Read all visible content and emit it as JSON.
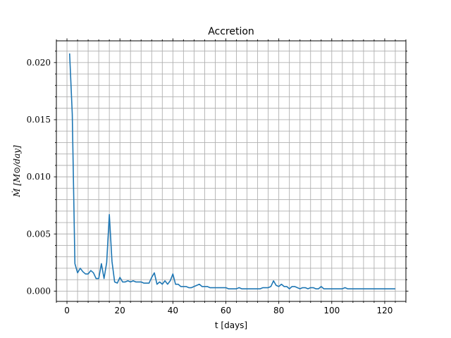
{
  "chart_data": {
    "type": "line",
    "title": "Accretion",
    "xlabel": "t [days]",
    "ylabel": "Ṁ    [M⊙/day]",
    "xlim": [
      -4,
      128
    ],
    "ylim": [
      -0.0009,
      0.0219
    ],
    "xticks": [
      0,
      20,
      40,
      60,
      80,
      100,
      120
    ],
    "xtick_labels": [
      "0",
      "20",
      "40",
      "60",
      "80",
      "100",
      "120"
    ],
    "x_minor_step": 4,
    "yticks": [
      0.0,
      0.005,
      0.01,
      0.015,
      0.02
    ],
    "ytick_labels": [
      "0.000",
      "0.005",
      "0.010",
      "0.015",
      "0.020"
    ],
    "y_minor_step": 0.001,
    "grid": true,
    "series": [
      {
        "color": "#1f77b4",
        "x": [
          1,
          2,
          3,
          4,
          5,
          6,
          7,
          8,
          9,
          10,
          11,
          12,
          13,
          14,
          15,
          16,
          17,
          18,
          19,
          20,
          21,
          22,
          23,
          24,
          25,
          26,
          27,
          28,
          29,
          30,
          31,
          32,
          33,
          34,
          35,
          36,
          37,
          38,
          39,
          40,
          41,
          42,
          43,
          44,
          45,
          46,
          47,
          48,
          49,
          50,
          51,
          52,
          53,
          54,
          55,
          56,
          57,
          58,
          59,
          60,
          61,
          62,
          63,
          64,
          65,
          66,
          67,
          68,
          69,
          70,
          71,
          72,
          73,
          74,
          75,
          76,
          77,
          78,
          79,
          80,
          81,
          82,
          83,
          84,
          85,
          86,
          87,
          88,
          89,
          90,
          91,
          92,
          93,
          94,
          95,
          96,
          97,
          98,
          99,
          100,
          101,
          102,
          103,
          104,
          105,
          106,
          107,
          108,
          109,
          110,
          111,
          112,
          113,
          114,
          115,
          116,
          117,
          118,
          119,
          120,
          121,
          122,
          123,
          124
        ],
        "y": [
          0.0208,
          0.0155,
          0.0024,
          0.0016,
          0.002,
          0.0017,
          0.0015,
          0.0015,
          0.0018,
          0.0016,
          0.0011,
          0.0011,
          0.0024,
          0.0011,
          0.0025,
          0.0067,
          0.0026,
          0.0008,
          0.0007,
          0.0012,
          0.0008,
          0.0008,
          0.0009,
          0.0008,
          0.0009,
          0.0008,
          0.0008,
          0.0008,
          0.0007,
          0.0007,
          0.0007,
          0.0012,
          0.0016,
          0.0006,
          0.0008,
          0.0006,
          0.0009,
          0.0006,
          0.0009,
          0.0015,
          0.0006,
          0.0006,
          0.0004,
          0.0004,
          0.0004,
          0.0003,
          0.0003,
          0.0004,
          0.0005,
          0.0006,
          0.0004,
          0.0004,
          0.0004,
          0.0003,
          0.0003,
          0.0003,
          0.0003,
          0.0003,
          0.0003,
          0.0003,
          0.0002,
          0.0002,
          0.0002,
          0.0002,
          0.0003,
          0.0002,
          0.0002,
          0.0002,
          0.0002,
          0.0002,
          0.0002,
          0.0002,
          0.0002,
          0.0003,
          0.0003,
          0.0003,
          0.0004,
          0.0009,
          0.0005,
          0.0004,
          0.0006,
          0.0004,
          0.0004,
          0.0002,
          0.0004,
          0.0004,
          0.0003,
          0.0002,
          0.0003,
          0.0003,
          0.0002,
          0.0003,
          0.0003,
          0.0002,
          0.0002,
          0.0004,
          0.0002,
          0.0002,
          0.0002,
          0.0002,
          0.0002,
          0.0002,
          0.0002,
          0.0002,
          0.0003,
          0.0002,
          0.0002,
          0.0002,
          0.0002,
          0.0002,
          0.0002,
          0.0002,
          0.0002,
          0.0002,
          0.0002,
          0.0002,
          0.0002,
          0.0002,
          0.0002,
          0.0002,
          0.0002,
          0.0002,
          0.0002,
          0.0002
        ]
      }
    ]
  }
}
